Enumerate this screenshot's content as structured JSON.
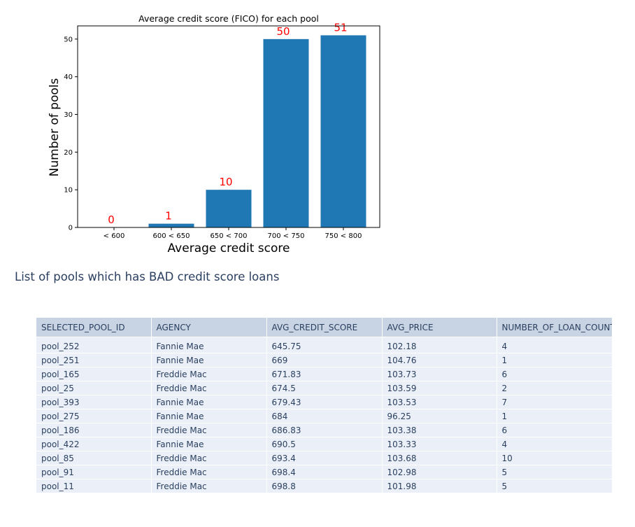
{
  "chart_data": {
    "type": "bar",
    "title": "Average credit score (FICO) for each pool",
    "xlabel": "Average credit score",
    "ylabel": "Number of pools",
    "categories": [
      "< 600",
      "600 < 650",
      "650 < 700",
      "700 < 750",
      "750 < 800"
    ],
    "values": [
      0,
      1,
      10,
      50,
      51
    ],
    "data_labels": [
      "0",
      "1",
      "10",
      "50",
      "51"
    ],
    "ylim": [
      0,
      53.5
    ],
    "yticks": [
      "0",
      "10",
      "20",
      "30",
      "40",
      "50"
    ],
    "grid": false,
    "bar_color": "#1f77b4",
    "label_color": "#ff0000"
  },
  "section_heading": "List of pools which has BAD credit score loans",
  "table": {
    "columns": [
      "SELECTED_POOL_ID",
      "AGENCY",
      "AVG_CREDIT_SCORE",
      "AVG_PRICE",
      "NUMBER_OF_LOAN_COUNT"
    ],
    "rows": [
      [
        "pool_252",
        "Fannie Mae",
        "645.75",
        "102.18",
        "4"
      ],
      [
        "pool_251",
        "Fannie Mae",
        "669",
        "104.76",
        "1"
      ],
      [
        "pool_165",
        "Freddie Mac",
        "671.83",
        "103.73",
        "6"
      ],
      [
        "pool_25",
        "Freddie Mac",
        "674.5",
        "103.59",
        "2"
      ],
      [
        "pool_393",
        "Fannie Mae",
        "679.43",
        "103.53",
        "7"
      ],
      [
        "pool_275",
        "Fannie Mae",
        "684",
        "96.25",
        "1"
      ],
      [
        "pool_186",
        "Freddie Mac",
        "686.83",
        "103.38",
        "6"
      ],
      [
        "pool_422",
        "Fannie Mae",
        "690.5",
        "103.33",
        "4"
      ],
      [
        "pool_85",
        "Freddie Mac",
        "693.4",
        "103.68",
        "10"
      ],
      [
        "pool_91",
        "Freddie Mac",
        "698.4",
        "102.98",
        "5"
      ],
      [
        "pool_11",
        "Freddie Mac",
        "698.8",
        "101.98",
        "5"
      ]
    ]
  }
}
